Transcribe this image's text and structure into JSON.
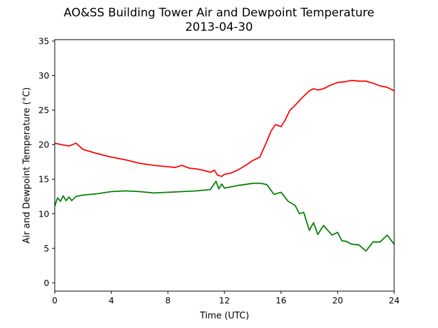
{
  "chart_data": {
    "type": "line",
    "title": "AO&SS Building Tower Air and Dewpoint Temperature",
    "subtitle": "2013-04-30",
    "xlabel": "Time (UTC)",
    "ylabel": "Air and Dewpoint Temperature (°C)",
    "xlim": [
      0,
      24
    ],
    "ylim": [
      -1.2,
      35.2
    ],
    "xticks": [
      0,
      4,
      8,
      12,
      16,
      20,
      24
    ],
    "yticks": [
      0,
      5,
      10,
      15,
      20,
      25,
      30,
      35
    ],
    "grid": false,
    "legend": "none",
    "series": [
      {
        "color": "#ff0000",
        "x": [
          0,
          0.5,
          1.0,
          1.5,
          2.0,
          3.0,
          4.0,
          5.0,
          6.0,
          7.0,
          8.0,
          8.5,
          9.0,
          9.5,
          10.0,
          10.5,
          11.0,
          11.3,
          11.5,
          11.8,
          12.0,
          12.5,
          13.0,
          13.5,
          14.0,
          14.5,
          15.0,
          15.3,
          15.6,
          16.0,
          16.3,
          16.6,
          17.0,
          17.5,
          18.0,
          18.3,
          18.6,
          19.0,
          19.5,
          20.0,
          20.5,
          21.0,
          21.5,
          22.0,
          22.5,
          23.0,
          23.5,
          24.0
        ],
        "y": [
          20.2,
          20.0,
          19.8,
          20.2,
          19.3,
          18.7,
          18.2,
          17.8,
          17.3,
          17.0,
          16.8,
          16.7,
          17.0,
          16.6,
          16.5,
          16.3,
          16.0,
          16.3,
          15.6,
          15.4,
          15.7,
          15.9,
          16.4,
          17.0,
          17.7,
          18.2,
          20.5,
          22.0,
          22.9,
          22.6,
          23.6,
          24.9,
          25.7,
          26.8,
          27.8,
          28.1,
          27.9,
          28.1,
          28.6,
          29.0,
          29.1,
          29.3,
          29.2,
          29.2,
          28.9,
          28.5,
          28.3,
          27.8
        ]
      },
      {
        "color": "#008000",
        "x": [
          0,
          0.2,
          0.4,
          0.6,
          0.8,
          1.0,
          1.2,
          1.5,
          2.0,
          3.0,
          4.0,
          5.0,
          6.0,
          7.0,
          8.0,
          9.0,
          10.0,
          11.0,
          11.4,
          11.6,
          11.8,
          12.0,
          12.5,
          13.0,
          14.0,
          14.6,
          15.0,
          15.5,
          16.0,
          16.5,
          17.0,
          17.3,
          17.6,
          18.0,
          18.3,
          18.6,
          19.0,
          19.3,
          19.6,
          20.0,
          20.3,
          20.6,
          21.0,
          21.5,
          22.0,
          22.5,
          23.0,
          23.5,
          24.0
        ],
        "y": [
          11.1,
          12.3,
          11.8,
          12.6,
          11.9,
          12.4,
          11.9,
          12.5,
          12.7,
          12.9,
          13.2,
          13.3,
          13.2,
          13.0,
          13.1,
          13.2,
          13.3,
          13.5,
          14.7,
          13.6,
          14.3,
          13.7,
          13.9,
          14.1,
          14.4,
          14.4,
          14.2,
          12.8,
          13.1,
          11.8,
          11.2,
          10.0,
          10.2,
          7.6,
          8.7,
          7.0,
          8.3,
          7.6,
          6.9,
          7.3,
          6.1,
          6.0,
          5.6,
          5.5,
          4.6,
          5.9,
          5.9,
          6.9,
          5.6
        ]
      }
    ]
  }
}
